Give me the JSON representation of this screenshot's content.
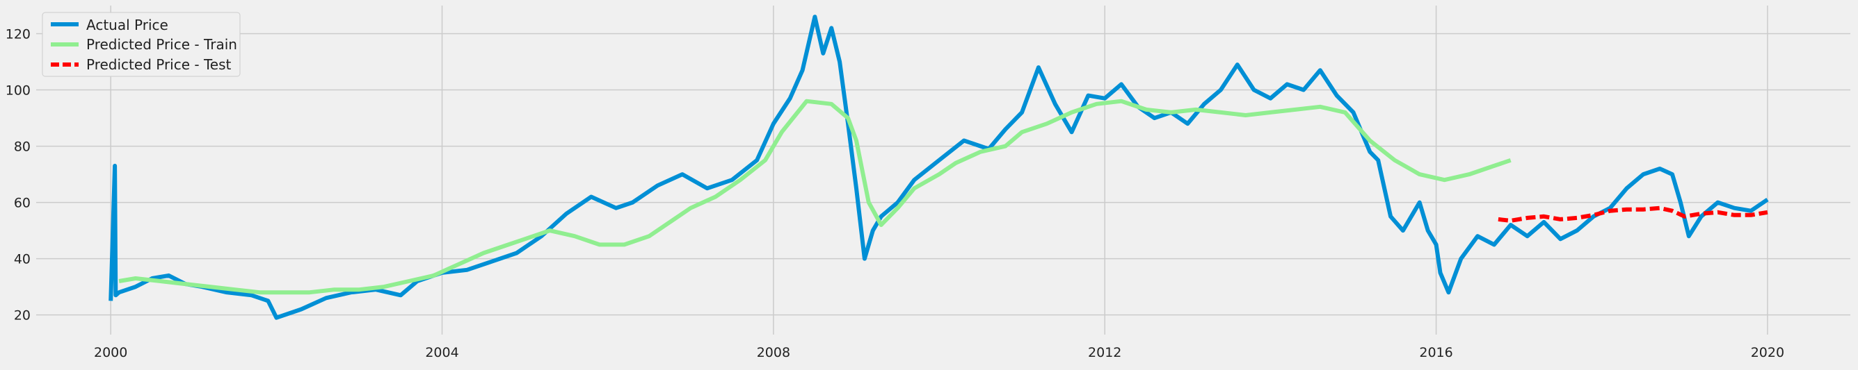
{
  "chart_data": {
    "type": "line",
    "title": "",
    "xlabel": "",
    "ylabel": "",
    "xlim": [
      1999.1,
      2021.0
    ],
    "ylim": [
      13,
      130
    ],
    "grid": true,
    "legend_location": "upper left",
    "x_ticks": [
      2000,
      2004,
      2008,
      2012,
      2016,
      2020
    ],
    "x_tick_labels": [
      "2000",
      "2004",
      "2008",
      "2012",
      "2016",
      "2020"
    ],
    "y_ticks": [
      20,
      40,
      60,
      80,
      100,
      120
    ],
    "y_tick_labels": [
      "20",
      "40",
      "60",
      "80",
      "100",
      "120"
    ],
    "colors": {
      "background": "#f0f0f0",
      "grid": "#cbcbcb",
      "actual": "#008fd5",
      "train": "#90ee90",
      "test": "#ff0000"
    },
    "series": [
      {
        "name": "Actual Price",
        "style": "solid",
        "color": "#008fd5",
        "x": [
          2000.0,
          2000.05,
          2000.06,
          2000.1,
          2000.3,
          2000.5,
          2000.7,
          2000.9,
          2001.1,
          2001.4,
          2001.7,
          2001.9,
          2002.0,
          2002.3,
          2002.6,
          2002.9,
          2003.2,
          2003.5,
          2003.7,
          2004.0,
          2004.3,
          2004.6,
          2004.9,
          2005.2,
          2005.5,
          2005.8,
          2006.1,
          2006.3,
          2006.6,
          2006.9,
          2007.2,
          2007.5,
          2007.8,
          2008.0,
          2008.2,
          2008.35,
          2008.5,
          2008.6,
          2008.7,
          2008.8,
          2008.9,
          2009.0,
          2009.1,
          2009.2,
          2009.3,
          2009.5,
          2009.7,
          2010.0,
          2010.3,
          2010.6,
          2010.8,
          2011.0,
          2011.2,
          2011.4,
          2011.6,
          2011.8,
          2012.0,
          2012.2,
          2012.4,
          2012.6,
          2012.8,
          2013.0,
          2013.2,
          2013.4,
          2013.6,
          2013.8,
          2014.0,
          2014.2,
          2014.4,
          2014.6,
          2014.8,
          2015.0,
          2015.1,
          2015.2,
          2015.3,
          2015.45,
          2015.6,
          2015.8,
          2015.9,
          2016.0,
          2016.05,
          2016.15,
          2016.3,
          2016.5,
          2016.7,
          2016.9,
          2017.1,
          2017.3,
          2017.5,
          2017.7,
          2017.9,
          2018.1,
          2018.3,
          2018.5,
          2018.7,
          2018.85,
          2018.95,
          2019.05,
          2019.2,
          2019.4,
          2019.6,
          2019.8,
          2020.0
        ],
        "values": [
          25,
          73,
          27,
          28,
          30,
          33,
          34,
          31,
          30,
          28,
          27,
          25,
          19,
          22,
          26,
          28,
          29,
          27,
          32,
          35,
          36,
          39,
          42,
          48,
          56,
          62,
          58,
          60,
          66,
          70,
          65,
          68,
          75,
          88,
          97,
          107,
          126,
          113,
          122,
          110,
          88,
          65,
          40,
          50,
          55,
          60,
          68,
          75,
          82,
          79,
          86,
          92,
          108,
          95,
          85,
          98,
          97,
          102,
          94,
          90,
          92,
          88,
          95,
          100,
          109,
          100,
          97,
          102,
          100,
          107,
          98,
          92,
          85,
          78,
          75,
          55,
          50,
          60,
          50,
          45,
          35,
          28,
          40,
          48,
          45,
          52,
          48,
          53,
          47,
          50,
          55,
          58,
          65,
          70,
          72,
          70,
          60,
          48,
          55,
          60,
          58,
          57,
          61
        ]
      },
      {
        "name": "Predicted Price - Train",
        "style": "solid",
        "color": "#90ee90",
        "x": [
          2000.1,
          2000.3,
          2000.6,
          2000.9,
          2001.2,
          2001.5,
          2001.8,
          2002.1,
          2002.4,
          2002.7,
          2003.0,
          2003.3,
          2003.6,
          2003.9,
          2004.2,
          2004.5,
          2004.8,
          2005.0,
          2005.3,
          2005.6,
          2005.9,
          2006.2,
          2006.5,
          2006.8,
          2007.0,
          2007.3,
          2007.6,
          2007.9,
          2008.1,
          2008.4,
          2008.7,
          2008.9,
          2009.0,
          2009.15,
          2009.3,
          2009.5,
          2009.7,
          2010.0,
          2010.2,
          2010.5,
          2010.8,
          2011.0,
          2011.3,
          2011.6,
          2011.9,
          2012.2,
          2012.5,
          2012.8,
          2013.1,
          2013.4,
          2013.7,
          2014.0,
          2014.3,
          2014.6,
          2014.9,
          2015.2,
          2015.5,
          2015.8,
          2016.1,
          2016.4,
          2016.7,
          2016.9
        ],
        "values": [
          32,
          33,
          32,
          31,
          30,
          29,
          28,
          28,
          28,
          29,
          29,
          30,
          32,
          34,
          38,
          42,
          45,
          47,
          50,
          48,
          45,
          45,
          48,
          54,
          58,
          62,
          68,
          75,
          85,
          96,
          95,
          90,
          82,
          60,
          52,
          58,
          65,
          70,
          74,
          78,
          80,
          85,
          88,
          92,
          95,
          96,
          93,
          92,
          93,
          92,
          91,
          92,
          93,
          94,
          92,
          82,
          75,
          70,
          68,
          70,
          73,
          75
        ]
      },
      {
        "name": "Predicted Price - Test",
        "style": "dashed",
        "color": "#ff0000",
        "x": [
          2016.75,
          2016.9,
          2017.1,
          2017.3,
          2017.5,
          2017.7,
          2017.9,
          2018.1,
          2018.3,
          2018.5,
          2018.7,
          2018.85,
          2019.0,
          2019.2,
          2019.4,
          2019.6,
          2019.8,
          2020.0
        ],
        "values": [
          54,
          53.5,
          54.5,
          55,
          54,
          54.5,
          55.5,
          57,
          57.5,
          57.5,
          58,
          57,
          55,
          56,
          56.5,
          55.5,
          55.5,
          56.5
        ]
      }
    ]
  }
}
